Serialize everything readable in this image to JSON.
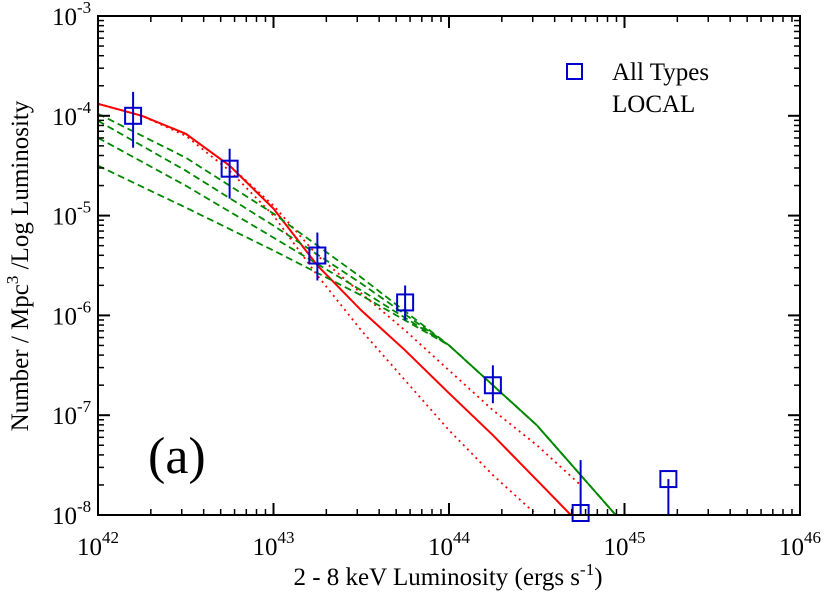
{
  "chart_data": {
    "type": "scatter",
    "title": "",
    "xlabel_parts": [
      "2 - 8 keV Luminosity  (ergs s",
      "-1",
      ")"
    ],
    "ylabel_parts": [
      "Number / Mpc",
      "3",
      " /Log Luminosity"
    ],
    "xscale": "log",
    "yscale": "log",
    "xlim_exp": [
      42,
      46
    ],
    "ylim_exp": [
      -8,
      -3
    ],
    "x_ticks": [
      {
        "base": "10",
        "exp": "42",
        "value": 42
      },
      {
        "base": "10",
        "exp": "43",
        "value": 43
      },
      {
        "base": "10",
        "exp": "44",
        "value": 44
      },
      {
        "base": "10",
        "exp": "45",
        "value": 45
      },
      {
        "base": "10",
        "exp": "46",
        "value": 46
      }
    ],
    "y_ticks": [
      {
        "base": "10",
        "exp": "-8",
        "value": -8
      },
      {
        "base": "10",
        "exp": "-7",
        "value": -7
      },
      {
        "base": "10",
        "exp": "-6",
        "value": -6
      },
      {
        "base": "10",
        "exp": "-5",
        "value": -5
      },
      {
        "base": "10",
        "exp": "-4",
        "value": -4
      },
      {
        "base": "10",
        "exp": "-3",
        "value": -3
      }
    ],
    "legend": {
      "position": "top-right",
      "entries": [
        "All Types",
        "LOCAL"
      ]
    },
    "annotation": "(a)",
    "colors": {
      "points": "#0000cc",
      "red": "#ff0000",
      "green": "#008800"
    },
    "series": [
      {
        "name": "All Types",
        "kind": "points",
        "log_x": [
          42.2,
          42.75,
          43.25,
          43.75,
          44.25,
          44.75,
          45.25
        ],
        "log_y": [
          -4.0,
          -4.53,
          -5.4,
          -5.87,
          -6.7,
          -7.98,
          -7.64
        ],
        "log_y_lo": [
          -4.32,
          -4.83,
          -5.65,
          -6.05,
          -6.88,
          -8.0,
          -8.0
        ],
        "log_y_hi": [
          -3.76,
          -4.33,
          -5.17,
          -5.7,
          -6.5,
          -7.45,
          -7.64
        ]
      },
      {
        "name": "red model (solid)",
        "kind": "line",
        "style": "solid",
        "color": "red",
        "log_x": [
          42.0,
          42.25,
          42.5,
          42.75,
          43.0,
          43.25,
          43.5,
          43.75,
          44.0,
          44.25,
          44.5,
          44.75
        ],
        "log_y": [
          -3.88,
          -4.0,
          -4.18,
          -4.5,
          -4.93,
          -5.5,
          -5.95,
          -6.35,
          -6.78,
          -7.2,
          -7.65,
          -8.1
        ]
      },
      {
        "name": "red model (dotted)",
        "kind": "line",
        "style": "dotted",
        "color": "red",
        "log_x": [
          42.0,
          42.25,
          42.5,
          42.75,
          43.0,
          43.25,
          43.5,
          43.75,
          44.0,
          44.25,
          44.5,
          44.75
        ],
        "log_y": [
          -3.88,
          -4.0,
          -4.18,
          -4.5,
          -4.9,
          -5.4,
          -5.78,
          -6.15,
          -6.55,
          -6.95,
          -7.3,
          -7.7
        ]
      },
      {
        "name": "red model (dotted, steep)",
        "kind": "line",
        "style": "dotted",
        "color": "red",
        "log_x": [
          42.0,
          42.25,
          42.5,
          42.75,
          43.0,
          43.25,
          43.5,
          43.75,
          44.0,
          44.25,
          44.5,
          44.75
        ],
        "log_y": [
          -3.88,
          -4.0,
          -4.2,
          -4.55,
          -5.0,
          -5.6,
          -6.15,
          -6.65,
          -7.15,
          -7.6,
          -8.0,
          -8.4
        ]
      },
      {
        "name": "green model 1",
        "kind": "line",
        "style": "dashed",
        "color": "green",
        "log_x": [
          42.0,
          42.5,
          43.0,
          43.5,
          44.0,
          44.5,
          44.95
        ],
        "log_y": [
          -3.98,
          -4.42,
          -4.98,
          -5.62,
          -6.3,
          -7.1,
          -8.0
        ]
      },
      {
        "name": "green model 2",
        "kind": "line",
        "style": "dashed",
        "color": "green",
        "log_x": [
          42.0,
          42.5,
          43.0,
          43.5,
          44.0,
          44.5,
          44.95
        ],
        "log_y": [
          -4.05,
          -4.55,
          -5.1,
          -5.68,
          -6.3,
          -7.1,
          -8.0
        ]
      },
      {
        "name": "green model 3",
        "kind": "line",
        "style": "dashed",
        "color": "green",
        "log_x": [
          42.0,
          42.5,
          43.0,
          43.5,
          44.0,
          44.5,
          44.95
        ],
        "log_y": [
          -4.22,
          -4.7,
          -5.22,
          -5.75,
          -6.3,
          -7.1,
          -8.0
        ]
      },
      {
        "name": "green model 4",
        "kind": "line",
        "style": "dashed",
        "color": "green",
        "log_x": [
          42.0,
          42.5,
          43.0,
          43.5,
          44.0,
          44.5,
          44.95
        ],
        "log_y": [
          -4.5,
          -4.92,
          -5.35,
          -5.8,
          -6.3,
          -7.1,
          -8.0
        ]
      }
    ]
  }
}
